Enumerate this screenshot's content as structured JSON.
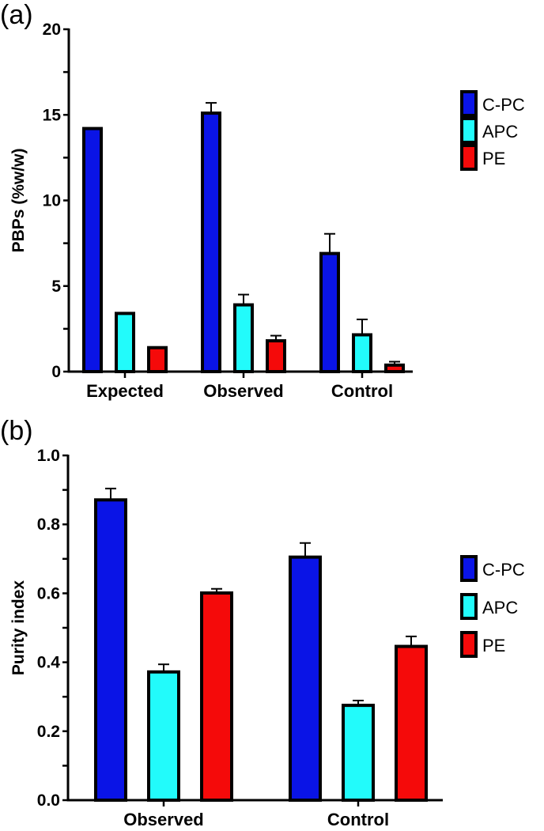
{
  "chart_data": [
    {
      "type": "bar",
      "panel_label": "(a)",
      "ylabel": "PBPs (%w/w)",
      "xlabel": "",
      "ylim": [
        0,
        20
      ],
      "yticks": [
        "0",
        "5",
        "10",
        "15",
        "20"
      ],
      "categories": [
        "Expected",
        "Observed",
        "Control"
      ],
      "legend_position": "right",
      "series": [
        {
          "name": "C-PC",
          "color": "#0a14e6",
          "values": [
            14.2,
            15.1,
            6.9
          ],
          "errors": [
            0,
            0.6,
            1.15
          ]
        },
        {
          "name": "APC",
          "color": "#22fbfb",
          "values": [
            3.4,
            3.9,
            2.15
          ],
          "errors": [
            0,
            0.6,
            0.9
          ]
        },
        {
          "name": "PE",
          "color": "#f50a0a",
          "values": [
            1.4,
            1.8,
            0.38
          ],
          "errors": [
            0,
            0.3,
            0.2
          ]
        }
      ]
    },
    {
      "type": "bar",
      "panel_label": "(b)",
      "ylabel": "Purity index",
      "xlabel": "",
      "ylim": [
        0,
        1.0
      ],
      "yticks": [
        "0.0",
        "0.2",
        "0.4",
        "0.6",
        "0.8",
        "1.0"
      ],
      "categories": [
        "Observed",
        "Control"
      ],
      "legend_position": "right",
      "series": [
        {
          "name": "C-PC",
          "color": "#0a14e6",
          "values": [
            0.871,
            0.705
          ],
          "errors": [
            0.033,
            0.041
          ]
        },
        {
          "name": "APC",
          "color": "#22fbfb",
          "values": [
            0.372,
            0.275
          ],
          "errors": [
            0.022,
            0.014
          ]
        },
        {
          "name": "PE",
          "color": "#f50a0a",
          "values": [
            0.601,
            0.446
          ],
          "errors": [
            0.012,
            0.029
          ]
        }
      ]
    }
  ]
}
